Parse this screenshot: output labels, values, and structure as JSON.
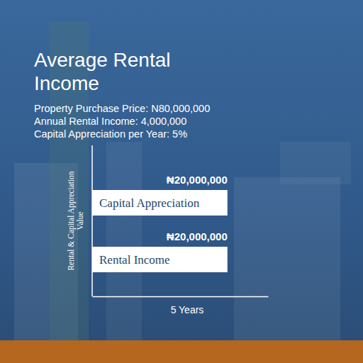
{
  "chart_data": {
    "type": "bar",
    "orientation": "horizontal",
    "title": "Average Rental Income",
    "subtitle": [
      "Property Purchase Price: N80,000,000",
      "Annual Rental Income: 4,000,000",
      "Capital Appreciation per Year: 5%"
    ],
    "categories": [
      "Capital Appreciation",
      "Rental Income"
    ],
    "values": [
      20000000,
      20000000
    ],
    "value_labels": [
      "₦20,000,000",
      "₦20,000,000"
    ],
    "data_labels": true,
    "color": "#ffffff",
    "xlabel": "5 Years",
    "ylabel": "Rental & Capital Appreciation Value",
    "xlim": [
      0,
      26000000
    ],
    "tick_labels": false,
    "grid": false
  }
}
